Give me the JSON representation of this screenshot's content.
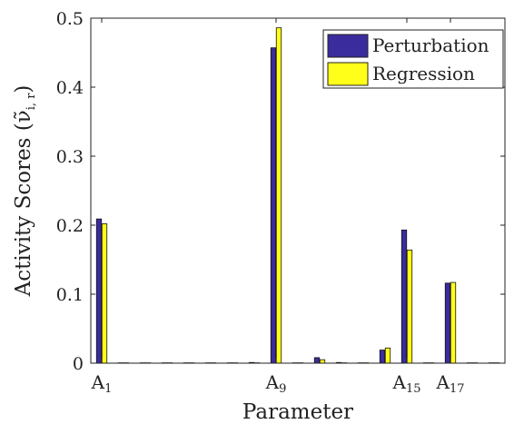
{
  "chart_data": {
    "type": "bar",
    "xlabel": "Parameter",
    "ylabel": "Activity Scores (",
    "ylabel_symbol": "ν̃",
    "ylabel_subscript": "i, r",
    "ylabel_close": ")",
    "ylim": [
      0,
      0.5
    ],
    "yticks": [
      "0",
      "0.1",
      "0.2",
      "0.3",
      "0.4",
      "0.5"
    ],
    "ytick_values": [
      0,
      0.1,
      0.2,
      0.3,
      0.4,
      0.5
    ],
    "x": [
      1,
      2,
      3,
      4,
      5,
      6,
      7,
      8,
      9,
      10,
      11,
      12,
      13,
      14,
      15,
      16,
      17,
      18,
      19
    ],
    "xlim": [
      0.5,
      19.5
    ],
    "xticks": [
      {
        "x": 1,
        "base": "A",
        "sub": "1"
      },
      {
        "x": 9,
        "base": "A",
        "sub": "9"
      },
      {
        "x": 15,
        "base": "A",
        "sub": "15"
      },
      {
        "x": 17,
        "base": "A",
        "sub": "17"
      }
    ],
    "grid": false,
    "legend_position": "top-right",
    "series": [
      {
        "name": "Perturbation",
        "color": "#3a2c9c",
        "values": [
          0.209,
          0.0005,
          0.0005,
          0.0005,
          0.0005,
          0.0005,
          0.0005,
          0.001,
          0.457,
          0.0005,
          0.008,
          0.001,
          0.0005,
          0.019,
          0.193,
          0.0005,
          0.116,
          0.0005,
          0.0005
        ]
      },
      {
        "name": "Regression",
        "color": "#ffff1a",
        "values": [
          0.202,
          0.0005,
          0.0005,
          0.0005,
          0.0005,
          0.0005,
          0.0005,
          0.0005,
          0.486,
          0.0005,
          0.005,
          0.0005,
          0.0005,
          0.022,
          0.164,
          0.0005,
          0.117,
          0.0005,
          0.0005
        ]
      }
    ]
  }
}
